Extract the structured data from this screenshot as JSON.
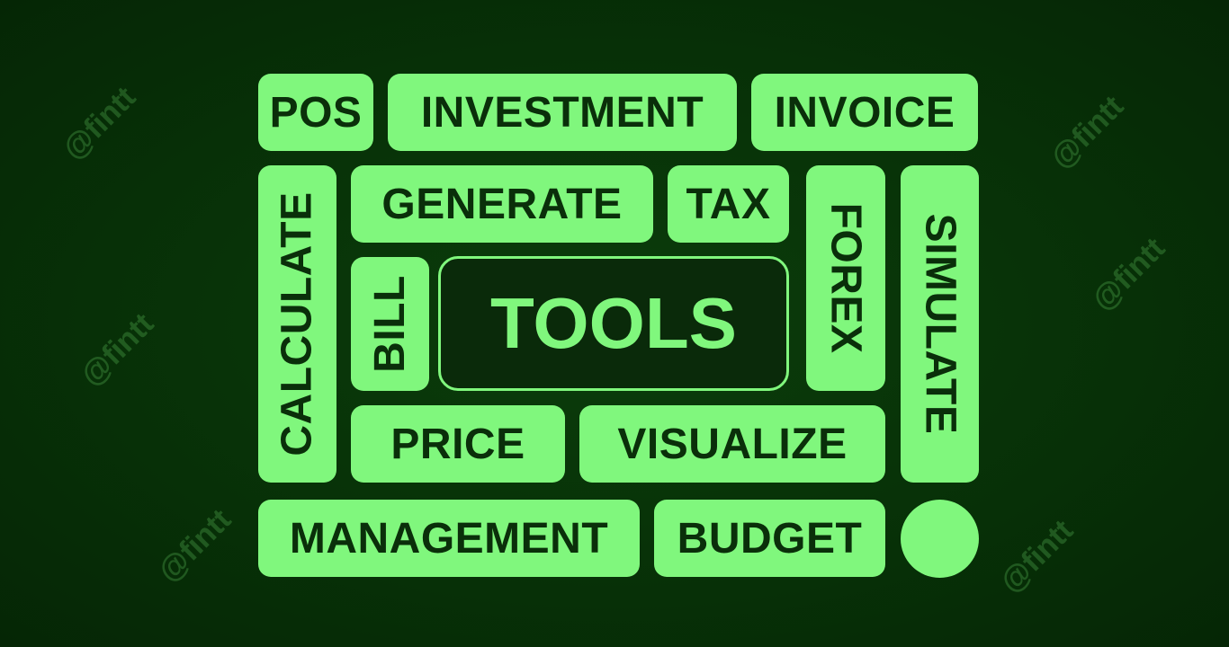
{
  "center_label": "TOOLS",
  "tiles": {
    "pos": "POS",
    "investment": "INVESTMENT",
    "invoice": "INVOICE",
    "calculate": "CALCULATE",
    "generate": "GENERATE",
    "tax": "TAX",
    "forex": "FOREX",
    "simulate": "SIMULATE",
    "bill": "BILL",
    "price": "PRICE",
    "visualize": "VISUALIZE",
    "management": "MANAGEMENT",
    "budget": "BUDGET"
  },
  "watermark": "@fintt",
  "colors": {
    "background": "#073007",
    "tile": "#80f77d",
    "tile_text": "#0a2f0a",
    "center_bg": "#0a2a0a"
  }
}
